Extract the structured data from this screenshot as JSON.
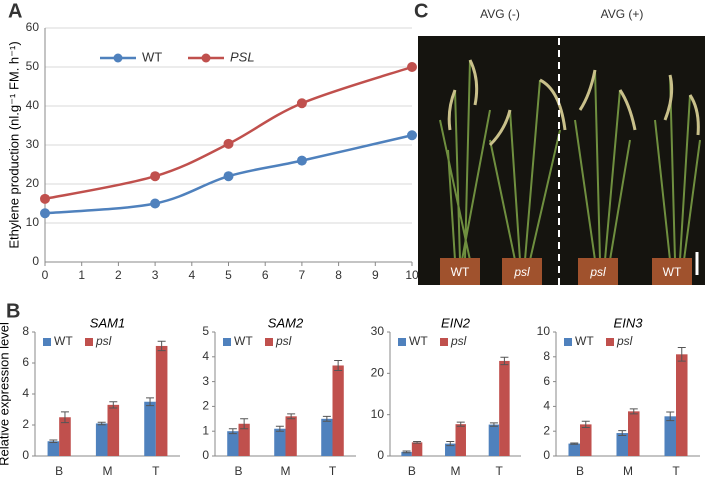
{
  "panel_labels": [
    "A",
    "B",
    "C"
  ],
  "photo": {
    "titles": [
      "AVG (-)",
      "AVG (+)"
    ],
    "pots": [
      "WT",
      "psl",
      "psl",
      "WT"
    ]
  },
  "chart_data": [
    {
      "type": "line",
      "ylabel": "Ethylene production (nl.g⁻¹ FM. h⁻¹)",
      "x": [
        0,
        3,
        5,
        7,
        10
      ],
      "xlim": [
        0,
        10
      ],
      "xticks": [
        0,
        1,
        2,
        3,
        4,
        5,
        6,
        7,
        8,
        9,
        10
      ],
      "ylim": [
        0,
        60
      ],
      "yticks": [
        0,
        10,
        20,
        30,
        40,
        50,
        60
      ],
      "grid": true,
      "legend": "upper left",
      "series": [
        {
          "name": "WT",
          "color": "#4f81bd",
          "values": [
            12.5,
            15,
            22,
            26,
            32.5
          ]
        },
        {
          "name": "PSL",
          "color": "#c0504d",
          "values": [
            16.2,
            22,
            30.3,
            40.7,
            50
          ]
        }
      ]
    },
    {
      "type": "bar",
      "title": "SAM1",
      "ylabel": "Relative expression level",
      "categories": [
        "B",
        "M",
        "T"
      ],
      "ylim": [
        0,
        8
      ],
      "yticks": [
        0,
        2,
        4,
        6,
        8
      ],
      "series": [
        {
          "name": "WT",
          "color": "#4f81bd",
          "values": [
            0.95,
            2.1,
            3.5
          ],
          "errors": [
            0.08,
            0.08,
            0.25
          ]
        },
        {
          "name": "psl",
          "color": "#c0504d",
          "values": [
            2.5,
            3.3,
            7.1
          ],
          "errors": [
            0.35,
            0.2,
            0.3
          ]
        }
      ]
    },
    {
      "type": "bar",
      "title": "SAM2",
      "categories": [
        "B",
        "M",
        "T"
      ],
      "ylim": [
        0,
        5
      ],
      "yticks": [
        0,
        1,
        2,
        3,
        4,
        5
      ],
      "series": [
        {
          "name": "WT",
          "color": "#4f81bd",
          "values": [
            1.0,
            1.1,
            1.5
          ],
          "errors": [
            0.1,
            0.1,
            0.1
          ]
        },
        {
          "name": "psl",
          "color": "#c0504d",
          "values": [
            1.3,
            1.6,
            3.65
          ],
          "errors": [
            0.2,
            0.1,
            0.2
          ]
        }
      ]
    },
    {
      "type": "bar",
      "title": "EIN2",
      "categories": [
        "B",
        "M",
        "T"
      ],
      "ylim": [
        0,
        30
      ],
      "yticks": [
        0,
        10,
        20,
        30
      ],
      "series": [
        {
          "name": "WT",
          "color": "#4f81bd",
          "values": [
            1,
            3,
            7.6
          ],
          "errors": [
            0.2,
            0.5,
            0.4
          ]
        },
        {
          "name": "psl",
          "color": "#c0504d",
          "values": [
            3.3,
            7.7,
            23
          ],
          "errors": [
            0.2,
            0.5,
            0.9
          ]
        }
      ]
    },
    {
      "type": "bar",
      "title": "EIN3",
      "categories": [
        "B",
        "M",
        "T"
      ],
      "ylim": [
        0,
        10
      ],
      "yticks": [
        0,
        2,
        4,
        6,
        8,
        10
      ],
      "series": [
        {
          "name": "WT",
          "color": "#4f81bd",
          "values": [
            1.0,
            1.85,
            3.2
          ],
          "errors": [
            0.05,
            0.2,
            0.35
          ]
        },
        {
          "name": "psl",
          "color": "#c0504d",
          "values": [
            2.55,
            3.6,
            8.2
          ],
          "errors": [
            0.25,
            0.2,
            0.55
          ]
        }
      ]
    }
  ]
}
